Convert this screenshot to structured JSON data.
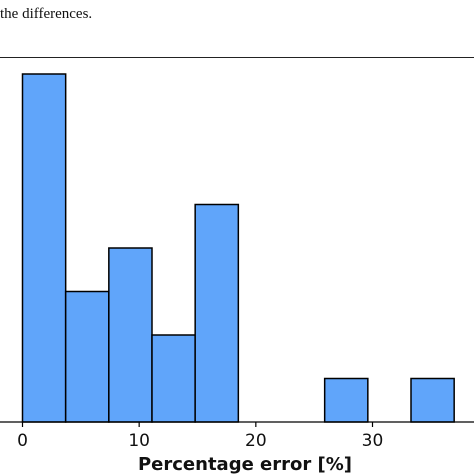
{
  "caption": "the differences.",
  "chart_data": {
    "type": "histogram",
    "xlabel": "Percentage error [%]",
    "ylabel": "",
    "title": "",
    "xlim": [
      -0.3,
      38.7
    ],
    "ylim": [
      0,
      8
    ],
    "x_ticks": [
      0,
      10,
      20,
      30
    ],
    "bar_color": "#60a5fa",
    "edge_color": "#000000",
    "bins": [
      {
        "x0": 0.0,
        "x1": 3.7,
        "count": 8
      },
      {
        "x0": 3.7,
        "x1": 7.4,
        "count": 3
      },
      {
        "x0": 7.4,
        "x1": 11.1,
        "count": 4
      },
      {
        "x0": 11.1,
        "x1": 14.8,
        "count": 2
      },
      {
        "x0": 14.8,
        "x1": 18.5,
        "count": 5
      },
      {
        "x0": 18.5,
        "x1": 22.2,
        "count": 0
      },
      {
        "x0": 22.2,
        "x1": 25.9,
        "count": 0
      },
      {
        "x0": 25.9,
        "x1": 29.6,
        "count": 1
      },
      {
        "x0": 29.6,
        "x1": 33.3,
        "count": 0
      },
      {
        "x0": 33.3,
        "x1": 37.0,
        "count": 1
      }
    ]
  }
}
